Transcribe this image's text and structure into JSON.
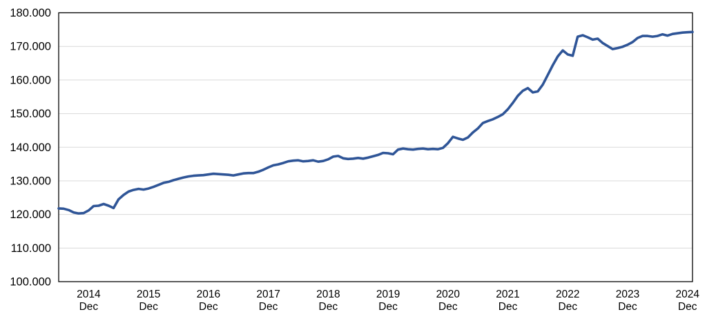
{
  "chart_data": {
    "type": "line",
    "title": "",
    "xlabel": "",
    "ylabel": "",
    "background": "#FFFFFF",
    "grid": true,
    "grid_color": "#D9D9D9",
    "border_color": "#000000",
    "legend": "none",
    "y_min": 100,
    "y_max": 180,
    "y_tick_step": 10,
    "y_tick_labels": [
      "100.000",
      "110.000",
      "120.000",
      "130.000",
      "140.000",
      "150.000",
      "160.000",
      "170.000",
      "180.000"
    ],
    "x_tick_month_label": "Dec",
    "x_tick_years": [
      "2014",
      "2015",
      "2016",
      "2017",
      "2018",
      "2019",
      "2020",
      "2021",
      "2022",
      "2023",
      "2024"
    ],
    "x_start_month": "2014-06",
    "x_end_month": "2025-01",
    "series": [
      {
        "name": "index-line",
        "color": "#2F5597",
        "values": [
          121.8,
          121.7,
          121.3,
          120.6,
          120.3,
          120.4,
          121.2,
          122.5,
          122.6,
          123.1,
          122.6,
          121.9,
          124.5,
          125.8,
          126.8,
          127.3,
          127.6,
          127.4,
          127.7,
          128.2,
          128.8,
          129.4,
          129.7,
          130.2,
          130.6,
          131.0,
          131.3,
          131.5,
          131.6,
          131.7,
          131.9,
          132.1,
          132.0,
          131.9,
          131.8,
          131.6,
          131.9,
          132.2,
          132.3,
          132.3,
          132.7,
          133.3,
          134.0,
          134.6,
          134.9,
          135.3,
          135.8,
          136.0,
          136.1,
          135.8,
          135.9,
          136.1,
          135.7,
          135.9,
          136.4,
          137.2,
          137.4,
          136.7,
          136.5,
          136.6,
          136.8,
          136.6,
          136.9,
          137.3,
          137.7,
          138.3,
          138.2,
          137.9,
          139.3,
          139.6,
          139.4,
          139.3,
          139.5,
          139.6,
          139.4,
          139.5,
          139.4,
          139.8,
          141.2,
          143.1,
          142.6,
          142.2,
          142.9,
          144.4,
          145.6,
          147.2,
          147.8,
          148.3,
          149.0,
          149.8,
          151.3,
          153.2,
          155.3,
          156.8,
          157.6,
          156.3,
          156.6,
          158.6,
          161.5,
          164.4,
          167.0,
          168.8,
          167.6,
          167.2,
          172.9,
          173.3,
          172.7,
          172.0,
          172.3,
          171.0,
          170.1,
          169.2,
          169.5,
          169.9,
          170.5,
          171.3,
          172.5,
          173.1,
          173.1,
          172.9,
          173.1,
          173.6,
          173.2,
          173.7,
          173.9,
          174.1,
          174.2,
          174.3
        ]
      }
    ]
  }
}
